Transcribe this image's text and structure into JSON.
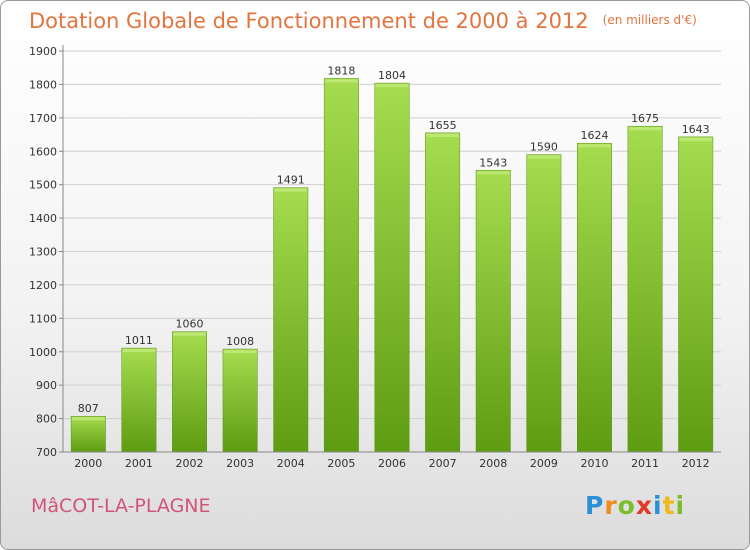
{
  "header": {
    "title": "Dotation Globale de Fonctionnement de 2000 à 2012",
    "unit": "(en milliers d'€)"
  },
  "footer": {
    "commune": "MâCOT-LA-PLAGNE",
    "logo_letters": [
      "P",
      "r",
      "o",
      "x",
      "i",
      "t",
      "i"
    ],
    "logo_colors": [
      "#2a8fd6",
      "#f08a1c",
      "#7bbd2a",
      "#e23a2a",
      "#2a8fd6",
      "#f0b81c",
      "#7bbd2a"
    ]
  },
  "colors": {
    "bar_light": "#a6dc4f",
    "bar_dark": "#5e9c12",
    "grid": "#d0d0d0",
    "axis": "#888888"
  },
  "chart_data": {
    "type": "bar",
    "categories": [
      "2000",
      "2001",
      "2002",
      "2003",
      "2004",
      "2005",
      "2006",
      "2007",
      "2008",
      "2009",
      "2010",
      "2011",
      "2012"
    ],
    "values": [
      807,
      1011,
      1060,
      1008,
      1491,
      1818,
      1804,
      1655,
      1543,
      1590,
      1624,
      1675,
      1643
    ],
    "ylim": [
      700,
      1900
    ],
    "yticks": [
      700,
      800,
      900,
      1000,
      1100,
      1200,
      1300,
      1400,
      1500,
      1600,
      1700,
      1800,
      1900
    ],
    "grid": true,
    "title": "Dotation Globale de Fonctionnement de 2000 à 2012",
    "xlabel": "",
    "ylabel": ""
  }
}
